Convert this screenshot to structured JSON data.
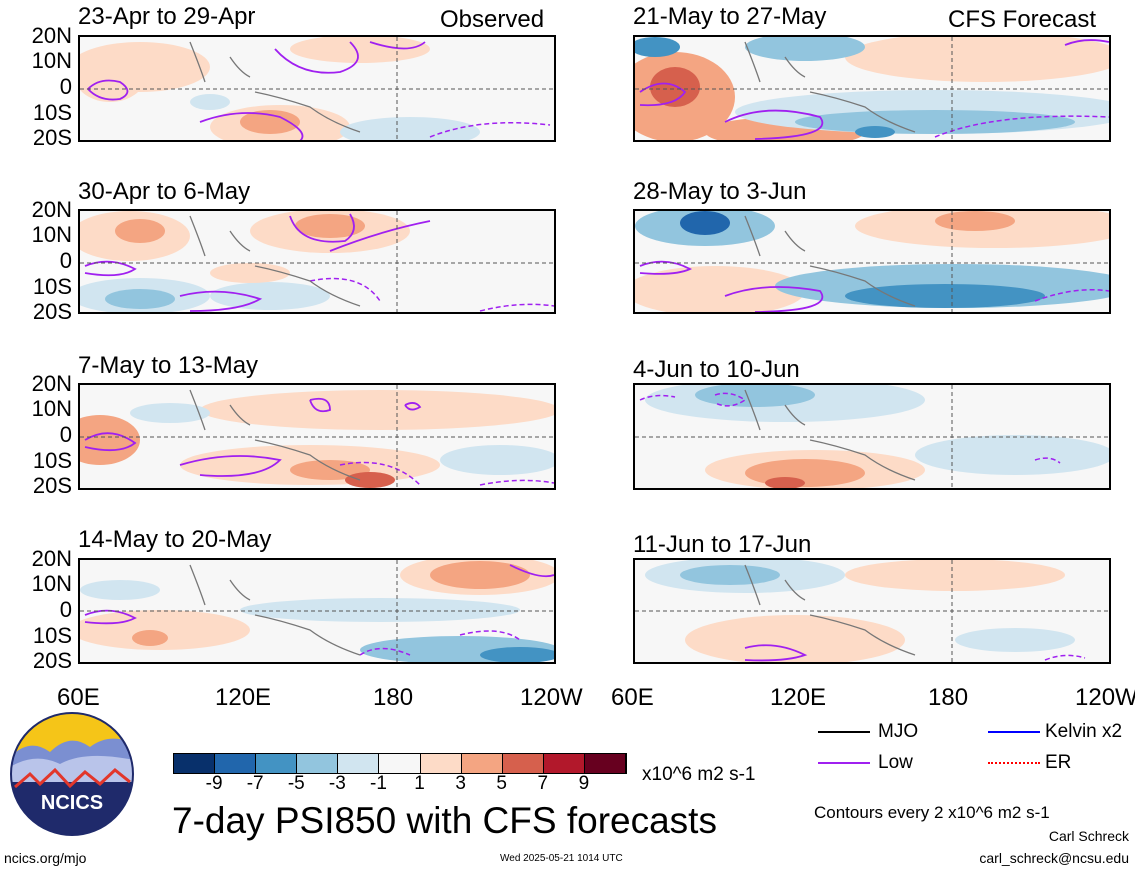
{
  "panels_observed": [
    {
      "title": "23-Apr to 29-Apr",
      "tag": "Observed"
    },
    {
      "title": "30-Apr to 6-May",
      "tag": ""
    },
    {
      "title": "7-May to 13-May",
      "tag": ""
    },
    {
      "title": "14-May to 20-May",
      "tag": ""
    }
  ],
  "panels_forecast": [
    {
      "title": "21-May to 27-May",
      "tag": "CFS Forecast"
    },
    {
      "title": "28-May to 3-Jun",
      "tag": ""
    },
    {
      "title": "4-Jun to 10-Jun",
      "tag": ""
    },
    {
      "title": "11-Jun to 17-Jun",
      "tag": ""
    }
  ],
  "lat_labels": [
    "20N",
    "10N",
    "0",
    "10S",
    "20S"
  ],
  "lon_labels": [
    "60E",
    "120E",
    "180",
    "120W"
  ],
  "colorbar": {
    "ticks": [
      "-9",
      "-7",
      "-5",
      "-3",
      "-1",
      "1",
      "3",
      "5",
      "7",
      "9"
    ],
    "colors": [
      "#08306b",
      "#2166ac",
      "#4393c3",
      "#92c5de",
      "#d1e5f0",
      "#f7f7f7",
      "#fddbc7",
      "#f4a582",
      "#d6604d",
      "#b2182b",
      "#67001f"
    ],
    "units": "x10^6 m2 s-1"
  },
  "legend": {
    "mjo": {
      "label": "MJO",
      "color": "#000000"
    },
    "kelvin": {
      "label": "Kelvin x2",
      "color": "#0000ff"
    },
    "low": {
      "label": "Low",
      "color": "#a020f0"
    },
    "er": {
      "label": "ER",
      "color": "#ff0000"
    }
  },
  "main_title": "7-day PSI850 with CFS forecasts",
  "contour_note": "Contours every 2 x10^6 m2 s-1",
  "author": "Carl Schreck",
  "email": "carl_schreck@ncsu.edu",
  "site": "ncics.org/mjo",
  "timestamp": "Wed 2025-05-21 1014 UTC",
  "logo_text": "NCICS"
}
